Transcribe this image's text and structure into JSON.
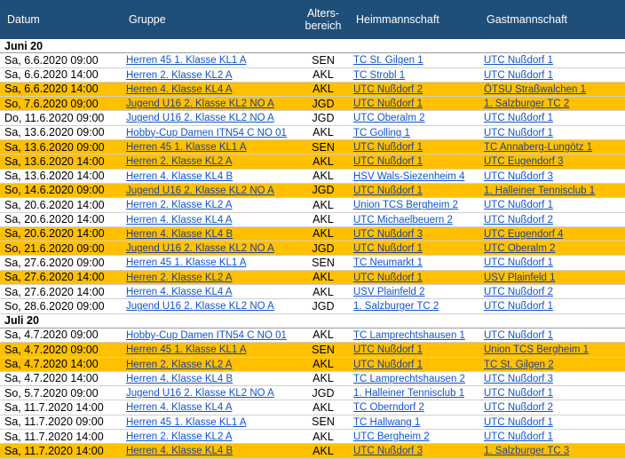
{
  "headers": {
    "datum": "Datum",
    "gruppe": "Gruppe",
    "alter": "Alters-\nbereich",
    "heim": "Heimmannschaft",
    "gast": "Gastmannschaft"
  },
  "sections": [
    {
      "title": "Juni 20",
      "rows": [
        {
          "date": "Sa, 6.6.2020 09:00",
          "group": "Herren 45 1. Klasse KL1 A",
          "age": "SEN",
          "home": "TC St. Gilgen 1",
          "guest": "UTC Nußdorf 1",
          "hl": false
        },
        {
          "date": "Sa, 6.6.2020 14:00",
          "group": "Herren 2. Klasse KL2 A",
          "age": "AKL",
          "home": "TC Strobl 1",
          "guest": "UTC Nußdorf 1",
          "hl": false
        },
        {
          "date": "Sa, 6.6.2020 14:00",
          "group": "Herren 4. Klasse KL4 A",
          "age": "AKL",
          "home": "UTC Nußdorf 2",
          "guest": "ÖTSU Straßwalchen 1",
          "hl": true
        },
        {
          "date": "So, 7.6.2020 09:00",
          "group": "Jugend U16 2. Klasse KL2 NO A",
          "age": "JGD",
          "home": "UTC Nußdorf 1",
          "guest": "1. Salzburger TC 2",
          "hl": true
        },
        {
          "date": "Do, 11.6.2020 09:00",
          "group": "Jugend U16 2. Klasse KL2 NO A",
          "age": "JGD",
          "home": "UTC Oberalm 2",
          "guest": "UTC Nußdorf 1",
          "hl": false
        },
        {
          "date": "Sa, 13.6.2020 09:00",
          "group": "Hobby-Cup Damen ITN54 C NO 01",
          "age": "AKL",
          "home": "TC Golling 1",
          "guest": "UTC Nußdorf 1",
          "hl": false
        },
        {
          "date": "Sa, 13.6.2020 09:00",
          "group": "Herren 45 1. Klasse KL1 A",
          "age": "SEN",
          "home": "UTC Nußdorf 1",
          "guest": "TC Annaberg-Lungötz 1",
          "hl": true
        },
        {
          "date": "Sa, 13.6.2020 14:00",
          "group": "Herren 2. Klasse KL2 A",
          "age": "AKL",
          "home": "UTC Nußdorf 1",
          "guest": "UTC Eugendorf 3",
          "hl": true
        },
        {
          "date": "Sa, 13.6.2020 14:00",
          "group": "Herren 4. Klasse KL4 B",
          "age": "AKL",
          "home": "HSV Wals-Siezenheim 4",
          "guest": "UTC Nußdorf 3",
          "hl": false
        },
        {
          "date": "So, 14.6.2020 09:00",
          "group": "Jugend U16 2. Klasse KL2 NO A",
          "age": "JGD",
          "home": "UTC Nußdorf 1",
          "guest": "1. Halleiner Tennisclub 1",
          "hl": true
        },
        {
          "date": "Sa, 20.6.2020 14:00",
          "group": "Herren 2. Klasse KL2 A",
          "age": "AKL",
          "home": "Union TCS Bergheim 2",
          "guest": "UTC Nußdorf 1",
          "hl": false
        },
        {
          "date": "Sa, 20.6.2020 14:00",
          "group": "Herren 4. Klasse KL4 A",
          "age": "AKL",
          "home": "UTC Michaelbeuern 2",
          "guest": "UTC Nußdorf 2",
          "hl": false
        },
        {
          "date": "Sa, 20.6.2020 14:00",
          "group": "Herren 4. Klasse KL4 B",
          "age": "AKL",
          "home": "UTC Nußdorf 3",
          "guest": "UTC Eugendorf 4",
          "hl": true
        },
        {
          "date": "So, 21.6.2020 09:00",
          "group": "Jugend U16 2. Klasse KL2 NO A",
          "age": "JGD",
          "home": "UTC Nußdorf 1",
          "guest": "UTC Oberalm 2",
          "hl": true
        },
        {
          "date": "Sa, 27.6.2020 09:00",
          "group": "Herren 45 1. Klasse KL1 A",
          "age": "SEN",
          "home": "TC Neumarkt 1",
          "guest": "UTC Nußdorf 1",
          "hl": false
        },
        {
          "date": "Sa, 27.6.2020 14:00",
          "group": "Herren 2. Klasse KL2 A",
          "age": "AKL",
          "home": "UTC Nußdorf 1",
          "guest": "USV Plainfeld 1",
          "hl": true
        },
        {
          "date": "Sa, 27.6.2020 14:00",
          "group": "Herren 4. Klasse KL4 A",
          "age": "AKL",
          "home": "USV Plainfeld 2",
          "guest": "UTC Nußdorf 2",
          "hl": false
        },
        {
          "date": "So, 28.6.2020 09:00",
          "group": "Jugend U16 2. Klasse KL2 NO A",
          "age": "JGD",
          "home": "1. Salzburger TC 2",
          "guest": "UTC Nußdorf 1",
          "hl": false
        }
      ]
    },
    {
      "title": "Juli 20",
      "rows": [
        {
          "date": "Sa, 4.7.2020 09:00",
          "group": "Hobby-Cup Damen ITN54 C NO 01",
          "age": "AKL",
          "home": "TC Lamprechtshausen 1",
          "guest": "UTC Nußdorf 1",
          "hl": false
        },
        {
          "date": "Sa, 4.7.2020 09:00",
          "group": "Herren 45 1. Klasse KL1 A",
          "age": "SEN",
          "home": "UTC Nußdorf 1",
          "guest": "Union TCS Bergheim 1",
          "hl": true
        },
        {
          "date": "Sa, 4.7.2020 14:00",
          "group": "Herren 2. Klasse KL2 A",
          "age": "AKL",
          "home": "UTC Nußdorf 1",
          "guest": "TC St. Gilgen 2",
          "hl": true
        },
        {
          "date": "Sa, 4.7.2020 14:00",
          "group": "Herren 4. Klasse KL4 B",
          "age": "AKL",
          "home": "TC Lamprechtshausen 2",
          "guest": "UTC Nußdorf 3",
          "hl": false
        },
        {
          "date": "So, 5.7.2020 09:00",
          "group": "Jugend U16 2. Klasse KL2 NO A",
          "age": "JGD",
          "home": "1. Halleiner Tennisclub 1",
          "guest": "UTC Nußdorf 1",
          "hl": false
        },
        {
          "date": "Sa, 11.7.2020 14:00",
          "group": "Herren 4. Klasse KL4 A",
          "age": "AKL",
          "home": "TC Oberndorf 2",
          "guest": "UTC Nußdorf 2",
          "hl": false
        },
        {
          "date": "Sa, 11.7.2020 09:00",
          "group": "Herren 45 1. Klasse KL1 A",
          "age": "SEN",
          "home": "TC Hallwang 1",
          "guest": "UTC Nußdorf 1",
          "hl": false
        },
        {
          "date": "Sa, 11.7.2020 14:00",
          "group": "Herren 2. Klasse KL2 A",
          "age": "AKL",
          "home": "UTC Bergheim 2",
          "guest": "UTC Nußdorf 1",
          "hl": false
        },
        {
          "date": "Sa, 11.7.2020 14:00",
          "group": "Herren 4. Klasse KL4 B",
          "age": "AKL",
          "home": "UTC Nußdorf 3",
          "guest": "1. Salzburger TC 3",
          "hl": true
        }
      ]
    }
  ],
  "colors": {
    "header_bg": "#1f4e79",
    "highlight_bg": "#ffc000",
    "link": "#1155cc"
  }
}
